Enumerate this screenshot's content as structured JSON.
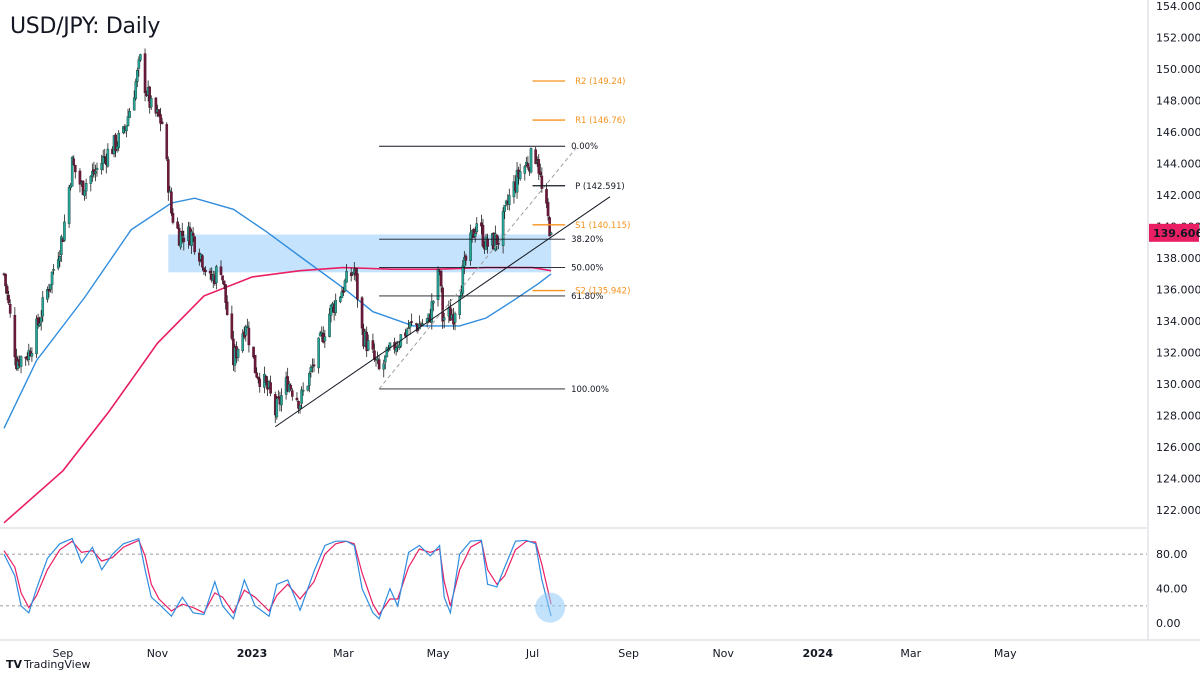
{
  "title": "USD/JPY: Daily",
  "brand": {
    "logo": "TV",
    "name": "TradingView"
  },
  "colors": {
    "bull": "#26a69a",
    "bear": "#ef5350",
    "candle_body_dark": "#1b3a2f",
    "candle_body_bear": "#6b1a3a",
    "ma_fast": "#2f8ddf",
    "ma_slow": "#e91e63",
    "zone": "#bbdefb",
    "pivot_orange": "#f7931e",
    "fib": "#131722",
    "price_tag": "#e91e63",
    "stoch_k": "#2f8ddf",
    "stoch_d": "#e91e63",
    "highlight": "#90caf9"
  },
  "chart_data": [
    {
      "type": "candlestick",
      "title": "USD/JPY: Daily",
      "ylim": [
        121.0,
        154.0
      ],
      "y_ticks": [
        "154.000",
        "152.000",
        "150.000",
        "148.000",
        "146.000",
        "144.000",
        "142.000",
        "140.000",
        "138.000",
        "136.000",
        "134.000",
        "132.000",
        "130.000",
        "128.000",
        "126.000",
        "124.000",
        "122.000"
      ],
      "x_ticks": [
        "Sep",
        "Nov",
        "2023",
        "Mar",
        "May",
        "Jul",
        "Sep",
        "Nov",
        "2024",
        "Mar",
        "May"
      ],
      "last_price": "139.606",
      "close_path": [
        [
          "2022-07-25",
          137.0
        ],
        [
          "2022-08-02",
          131.5
        ],
        [
          "2022-08-10",
          132.0
        ],
        [
          "2022-08-15",
          133.5
        ],
        [
          "2022-08-25",
          137.0
        ],
        [
          "2022-09-01",
          139.5
        ],
        [
          "2022-09-07",
          144.0
        ],
        [
          "2022-09-13",
          142.5
        ],
        [
          "2022-09-22",
          143.5
        ],
        [
          "2022-09-30",
          144.7
        ],
        [
          "2022-10-10",
          145.8
        ],
        [
          "2022-10-17",
          148.7
        ],
        [
          "2022-10-21",
          150.5
        ],
        [
          "2022-10-24",
          149.0
        ],
        [
          "2022-10-28",
          147.5
        ],
        [
          "2022-11-04",
          146.6
        ],
        [
          "2022-11-10",
          140.9
        ],
        [
          "2022-11-15",
          139.5
        ],
        [
          "2022-11-23",
          139.5
        ],
        [
          "2022-11-30",
          138.0
        ],
        [
          "2022-12-05",
          136.5
        ],
        [
          "2022-12-12",
          137.5
        ],
        [
          "2022-12-20",
          131.5
        ],
        [
          "2022-12-28",
          134.0
        ],
        [
          "2023-01-03",
          131.0
        ],
        [
          "2023-01-12",
          129.5
        ],
        [
          "2023-01-16",
          128.2
        ],
        [
          "2023-01-24",
          130.2
        ],
        [
          "2023-02-01",
          128.9
        ],
        [
          "2023-02-10",
          131.3
        ],
        [
          "2023-02-20",
          134.5
        ],
        [
          "2023-03-01",
          136.2
        ],
        [
          "2023-03-08",
          137.3
        ],
        [
          "2023-03-13",
          133.3
        ],
        [
          "2023-03-24",
          130.8
        ],
        [
          "2023-04-03",
          132.5
        ],
        [
          "2023-04-12",
          133.6
        ],
        [
          "2023-04-25",
          134.0
        ],
        [
          "2023-05-02",
          137.2
        ],
        [
          "2023-05-04",
          134.2
        ],
        [
          "2023-05-11",
          134.5
        ],
        [
          "2023-05-19",
          137.8
        ],
        [
          "2023-05-26",
          140.4
        ],
        [
          "2023-06-01",
          138.8
        ],
        [
          "2023-06-09",
          139.2
        ],
        [
          "2023-06-16",
          141.8
        ],
        [
          "2023-06-23",
          143.5
        ],
        [
          "2023-06-30",
          144.3
        ],
        [
          "2023-07-04",
          144.6
        ],
        [
          "2023-07-07",
          142.2
        ],
        [
          "2023-07-11",
          140.4
        ],
        [
          "2023-07-13",
          139.6
        ]
      ],
      "ma_fast": [
        [
          "2022-07-25",
          127.2
        ],
        [
          "2022-08-15",
          131.5
        ],
        [
          "2022-09-15",
          135.5
        ],
        [
          "2022-10-15",
          139.8
        ],
        [
          "2022-11-10",
          141.5
        ],
        [
          "2022-11-25",
          141.8
        ],
        [
          "2022-12-20",
          141.1
        ],
        [
          "2023-01-10",
          139.7
        ],
        [
          "2023-02-01",
          138.1
        ],
        [
          "2023-03-01",
          136.1
        ],
        [
          "2023-03-20",
          134.6
        ],
        [
          "2023-04-15",
          133.7
        ],
        [
          "2023-05-15",
          133.7
        ],
        [
          "2023-06-01",
          134.2
        ],
        [
          "2023-06-20",
          135.4
        ],
        [
          "2023-07-05",
          136.4
        ],
        [
          "2023-07-13",
          137.0
        ]
      ],
      "ma_slow": [
        [
          "2022-07-25",
          121.2
        ],
        [
          "2022-09-01",
          124.5
        ],
        [
          "2022-10-01",
          128.3
        ],
        [
          "2022-11-01",
          132.6
        ],
        [
          "2022-12-01",
          135.6
        ],
        [
          "2023-01-01",
          136.8
        ],
        [
          "2023-02-01",
          137.2
        ],
        [
          "2023-03-01",
          137.4
        ],
        [
          "2023-04-01",
          137.3
        ],
        [
          "2023-05-01",
          137.3
        ],
        [
          "2023-06-01",
          137.4
        ],
        [
          "2023-07-01",
          137.4
        ],
        [
          "2023-07-13",
          137.2
        ]
      ],
      "zone": {
        "from": "2022-11-08",
        "to": "2023-07-13",
        "low": 137.1,
        "high": 139.5
      },
      "trendline": [
        [
          "2023-01-16",
          127.3
        ],
        [
          "2023-08-20",
          141.9
        ]
      ],
      "fib_diagonal": [
        [
          "2023-03-24",
          129.7
        ],
        [
          "2023-07-30",
          145.1
        ]
      ],
      "fib_levels": [
        {
          "price": 145.1,
          "label": "0.00%"
        },
        {
          "price": 139.2,
          "label": "38.20%"
        },
        {
          "price": 137.4,
          "label": "50.00%"
        },
        {
          "price": 135.6,
          "label": "61.80%"
        },
        {
          "price": 129.7,
          "label": "100.00%"
        }
      ],
      "fib_range": [
        "2023-03-24",
        "2023-07-22"
      ],
      "pivot_levels": [
        {
          "price": 149.24,
          "label": "R2 (149.24)",
          "color": "#f7931e"
        },
        {
          "price": 146.76,
          "label": "R1 (146.76)",
          "color": "#f7931e"
        },
        {
          "price": 142.591,
          "label": "P (142.591)",
          "color": "#131722"
        },
        {
          "price": 140.115,
          "label": "S1 (140.115)",
          "color": "#f7931e"
        },
        {
          "price": 135.942,
          "label": "S2 (135.942)",
          "color": "#f7931e"
        }
      ],
      "pivot_range": [
        "2023-07-01",
        "2023-07-22"
      ]
    },
    {
      "type": "line",
      "name": "stochastic",
      "ylim": [
        -8,
        108
      ],
      "y_ticks": [
        "80.00",
        "40.00",
        "0.00"
      ],
      "levels": [
        80,
        20
      ],
      "k_series": [
        [
          "2022-07-25",
          80
        ],
        [
          "2022-08-01",
          55
        ],
        [
          "2022-08-05",
          20
        ],
        [
          "2022-08-10",
          12
        ],
        [
          "2022-08-15",
          40
        ],
        [
          "2022-08-22",
          75
        ],
        [
          "2022-08-30",
          92
        ],
        [
          "2022-09-07",
          98
        ],
        [
          "2022-09-13",
          70
        ],
        [
          "2022-09-20",
          88
        ],
        [
          "2022-09-26",
          62
        ],
        [
          "2022-10-03",
          80
        ],
        [
          "2022-10-10",
          92
        ],
        [
          "2022-10-20",
          98
        ],
        [
          "2022-10-24",
          62
        ],
        [
          "2022-10-28",
          30
        ],
        [
          "2022-11-02",
          22
        ],
        [
          "2022-11-10",
          8
        ],
        [
          "2022-11-17",
          30
        ],
        [
          "2022-11-24",
          12
        ],
        [
          "2022-12-01",
          10
        ],
        [
          "2022-12-08",
          48
        ],
        [
          "2022-12-13",
          20
        ],
        [
          "2022-12-20",
          5
        ],
        [
          "2022-12-27",
          50
        ],
        [
          "2023-01-03",
          20
        ],
        [
          "2023-01-12",
          8
        ],
        [
          "2023-01-17",
          45
        ],
        [
          "2023-01-24",
          50
        ],
        [
          "2023-02-01",
          15
        ],
        [
          "2023-02-10",
          60
        ],
        [
          "2023-02-17",
          90
        ],
        [
          "2023-02-24",
          95
        ],
        [
          "2023-03-03",
          95
        ],
        [
          "2023-03-08",
          90
        ],
        [
          "2023-03-13",
          40
        ],
        [
          "2023-03-20",
          12
        ],
        [
          "2023-03-24",
          5
        ],
        [
          "2023-03-31",
          40
        ],
        [
          "2023-04-05",
          20
        ],
        [
          "2023-04-12",
          82
        ],
        [
          "2023-04-19",
          90
        ],
        [
          "2023-04-26",
          78
        ],
        [
          "2023-05-02",
          90
        ],
        [
          "2023-05-05",
          30
        ],
        [
          "2023-05-09",
          12
        ],
        [
          "2023-05-15",
          80
        ],
        [
          "2023-05-22",
          95
        ],
        [
          "2023-05-29",
          96
        ],
        [
          "2023-06-02",
          45
        ],
        [
          "2023-06-08",
          42
        ],
        [
          "2023-06-13",
          65
        ],
        [
          "2023-06-20",
          95
        ],
        [
          "2023-06-27",
          96
        ],
        [
          "2023-07-03",
          92
        ],
        [
          "2023-07-07",
          50
        ],
        [
          "2023-07-13",
          8
        ]
      ],
      "d_series": [
        [
          "2022-07-25",
          84
        ],
        [
          "2022-08-01",
          65
        ],
        [
          "2022-08-05",
          35
        ],
        [
          "2022-08-10",
          18
        ],
        [
          "2022-08-15",
          32
        ],
        [
          "2022-08-22",
          62
        ],
        [
          "2022-08-30",
          85
        ],
        [
          "2022-09-07",
          95
        ],
        [
          "2022-09-13",
          82
        ],
        [
          "2022-09-20",
          84
        ],
        [
          "2022-09-26",
          72
        ],
        [
          "2022-10-03",
          76
        ],
        [
          "2022-10-10",
          88
        ],
        [
          "2022-10-20",
          96
        ],
        [
          "2022-10-24",
          78
        ],
        [
          "2022-10-28",
          45
        ],
        [
          "2022-11-02",
          28
        ],
        [
          "2022-11-10",
          14
        ],
        [
          "2022-11-17",
          22
        ],
        [
          "2022-11-24",
          18
        ],
        [
          "2022-12-01",
          12
        ],
        [
          "2022-12-08",
          35
        ],
        [
          "2022-12-13",
          30
        ],
        [
          "2022-12-20",
          12
        ],
        [
          "2022-12-27",
          38
        ],
        [
          "2023-01-03",
          30
        ],
        [
          "2023-01-12",
          14
        ],
        [
          "2023-01-17",
          32
        ],
        [
          "2023-01-24",
          45
        ],
        [
          "2023-02-01",
          28
        ],
        [
          "2023-02-10",
          48
        ],
        [
          "2023-02-17",
          80
        ],
        [
          "2023-02-24",
          92
        ],
        [
          "2023-03-03",
          95
        ],
        [
          "2023-03-08",
          92
        ],
        [
          "2023-03-13",
          58
        ],
        [
          "2023-03-20",
          22
        ],
        [
          "2023-03-24",
          10
        ],
        [
          "2023-03-31",
          28
        ],
        [
          "2023-04-05",
          28
        ],
        [
          "2023-04-12",
          65
        ],
        [
          "2023-04-19",
          86
        ],
        [
          "2023-04-26",
          82
        ],
        [
          "2023-05-02",
          86
        ],
        [
          "2023-05-05",
          48
        ],
        [
          "2023-05-09",
          20
        ],
        [
          "2023-05-15",
          62
        ],
        [
          "2023-05-22",
          88
        ],
        [
          "2023-05-29",
          95
        ],
        [
          "2023-06-02",
          62
        ],
        [
          "2023-06-08",
          45
        ],
        [
          "2023-06-13",
          55
        ],
        [
          "2023-06-20",
          85
        ],
        [
          "2023-06-27",
          95
        ],
        [
          "2023-07-03",
          94
        ],
        [
          "2023-07-07",
          68
        ],
        [
          "2023-07-13",
          22
        ]
      ]
    }
  ]
}
